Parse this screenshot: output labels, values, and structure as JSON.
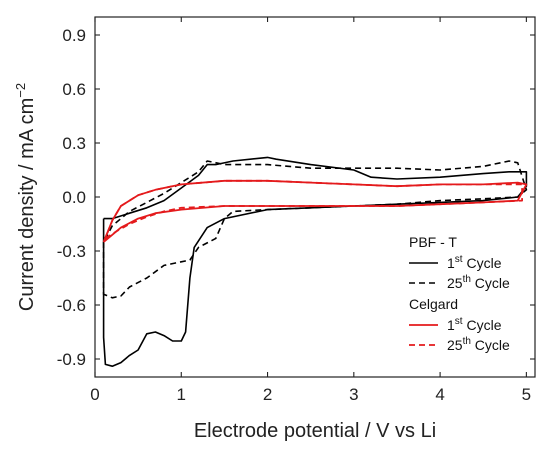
{
  "chart_data": {
    "type": "line",
    "xlabel": "Electrode potential / V vs Li",
    "ylabel_main": "Current density / mA cm",
    "ylabel_sup": "−2",
    "xlim": [
      0,
      5.1
    ],
    "ylim": [
      -1.0,
      1.0
    ],
    "x_ticks": [
      0,
      1,
      2,
      3,
      4,
      5
    ],
    "x_tick_labels": [
      "0",
      "1",
      "2",
      "3",
      "4",
      "5"
    ],
    "y_ticks": [
      -0.9,
      -0.6,
      -0.3,
      0.0,
      0.3,
      0.6,
      0.9
    ],
    "y_tick_labels": [
      "-0.9",
      "-0.6",
      "-0.3",
      "0.0",
      "0.3",
      "0.6",
      "0.9"
    ],
    "grid": false,
    "legend": {
      "placement": "bottom-right",
      "groups": [
        {
          "title": "PBF - T",
          "entries": [
            {
              "main": "1",
              "sup": "st",
              "rest": " Cycle",
              "series": 0
            },
            {
              "main": "25",
              "sup": "th",
              "rest": " Cycle",
              "series": 1
            }
          ]
        },
        {
          "title": "Celgard",
          "entries": [
            {
              "main": "1",
              "sup": "st",
              "rest": " Cycle",
              "series": 2
            },
            {
              "main": "25",
              "sup": "th",
              "rest": " Cycle",
              "series": 3
            }
          ]
        }
      ]
    },
    "series": [
      {
        "color": "#000000",
        "dash": "solid",
        "x": [
          0.1,
          0.1,
          0.12,
          0.2,
          0.3,
          0.4,
          0.5,
          0.6,
          0.7,
          0.8,
          0.9,
          1.0,
          1.05,
          1.1,
          1.15,
          1.3,
          1.5,
          2.0,
          2.5,
          3.0,
          3.5,
          4.0,
          4.5,
          4.9,
          5.0,
          5.0,
          4.8,
          4.5,
          4.0,
          3.5,
          3.2,
          3.0,
          2.5,
          2.1,
          2.0,
          1.6,
          1.4,
          1.3,
          1.2,
          1.0,
          0.8,
          0.6,
          0.4,
          0.2,
          0.1
        ],
        "y": [
          -0.12,
          -0.78,
          -0.93,
          -0.94,
          -0.92,
          -0.88,
          -0.85,
          -0.76,
          -0.75,
          -0.77,
          -0.8,
          -0.8,
          -0.75,
          -0.45,
          -0.28,
          -0.17,
          -0.12,
          -0.07,
          -0.06,
          -0.05,
          -0.04,
          -0.03,
          -0.02,
          0.0,
          0.06,
          0.14,
          0.14,
          0.13,
          0.11,
          0.1,
          0.11,
          0.15,
          0.18,
          0.21,
          0.22,
          0.2,
          0.18,
          0.18,
          0.12,
          0.05,
          -0.02,
          -0.06,
          -0.09,
          -0.12,
          -0.12
        ]
      },
      {
        "color": "#000000",
        "dash": "dashed",
        "x": [
          0.1,
          0.1,
          0.2,
          0.3,
          0.4,
          0.6,
          0.8,
          1.0,
          1.1,
          1.2,
          1.4,
          1.5,
          1.6,
          2.0,
          2.5,
          3.0,
          3.5,
          4.0,
          4.5,
          4.9,
          5.0,
          4.9,
          4.8,
          4.5,
          4.0,
          3.5,
          3.0,
          2.5,
          2.0,
          1.5,
          1.3,
          1.2,
          1.0,
          0.8,
          0.6,
          0.4,
          0.2,
          0.1
        ],
        "y": [
          -0.25,
          -0.54,
          -0.56,
          -0.55,
          -0.5,
          -0.45,
          -0.38,
          -0.36,
          -0.35,
          -0.28,
          -0.23,
          -0.12,
          -0.08,
          -0.07,
          -0.06,
          -0.05,
          -0.04,
          -0.02,
          -0.01,
          0.0,
          0.04,
          0.19,
          0.2,
          0.17,
          0.15,
          0.16,
          0.16,
          0.16,
          0.18,
          0.18,
          0.2,
          0.14,
          0.08,
          0.02,
          -0.03,
          -0.08,
          -0.16,
          -0.25
        ]
      },
      {
        "color": "#e41a1c",
        "dash": "solid",
        "x": [
          0.1,
          0.2,
          0.3,
          0.5,
          0.7,
          1.0,
          1.5,
          2.0,
          2.5,
          3.0,
          3.5,
          4.0,
          4.5,
          4.9,
          5.0,
          4.9,
          4.5,
          4.0,
          3.5,
          3.0,
          2.5,
          2.0,
          1.5,
          1.0,
          0.7,
          0.5,
          0.3,
          0.2,
          0.1
        ],
        "y": [
          -0.25,
          -0.21,
          -0.17,
          -0.12,
          -0.09,
          -0.07,
          -0.05,
          -0.05,
          -0.05,
          -0.05,
          -0.05,
          -0.04,
          -0.03,
          -0.02,
          0.07,
          0.08,
          0.07,
          0.07,
          0.06,
          0.07,
          0.08,
          0.09,
          0.09,
          0.07,
          0.04,
          0.01,
          -0.05,
          -0.13,
          -0.25
        ]
      },
      {
        "color": "#e41a1c",
        "dash": "dashed",
        "x": [
          0.12,
          0.25,
          0.4,
          0.6,
          0.8,
          1.0,
          1.5,
          2.0,
          2.5,
          3.0,
          3.5,
          4.0,
          4.5,
          4.95,
          4.95,
          4.5,
          4.0,
          3.5,
          3.0,
          2.5,
          2.0,
          1.5,
          1.0,
          0.7,
          0.5,
          0.3,
          0.2,
          0.12
        ],
        "y": [
          -0.23,
          -0.19,
          -0.15,
          -0.11,
          -0.08,
          -0.06,
          -0.05,
          -0.05,
          -0.05,
          -0.05,
          -0.05,
          -0.04,
          -0.03,
          -0.02,
          0.07,
          0.07,
          0.07,
          0.06,
          0.07,
          0.08,
          0.09,
          0.09,
          0.07,
          0.04,
          0.01,
          -0.05,
          -0.13,
          -0.23
        ]
      }
    ]
  }
}
